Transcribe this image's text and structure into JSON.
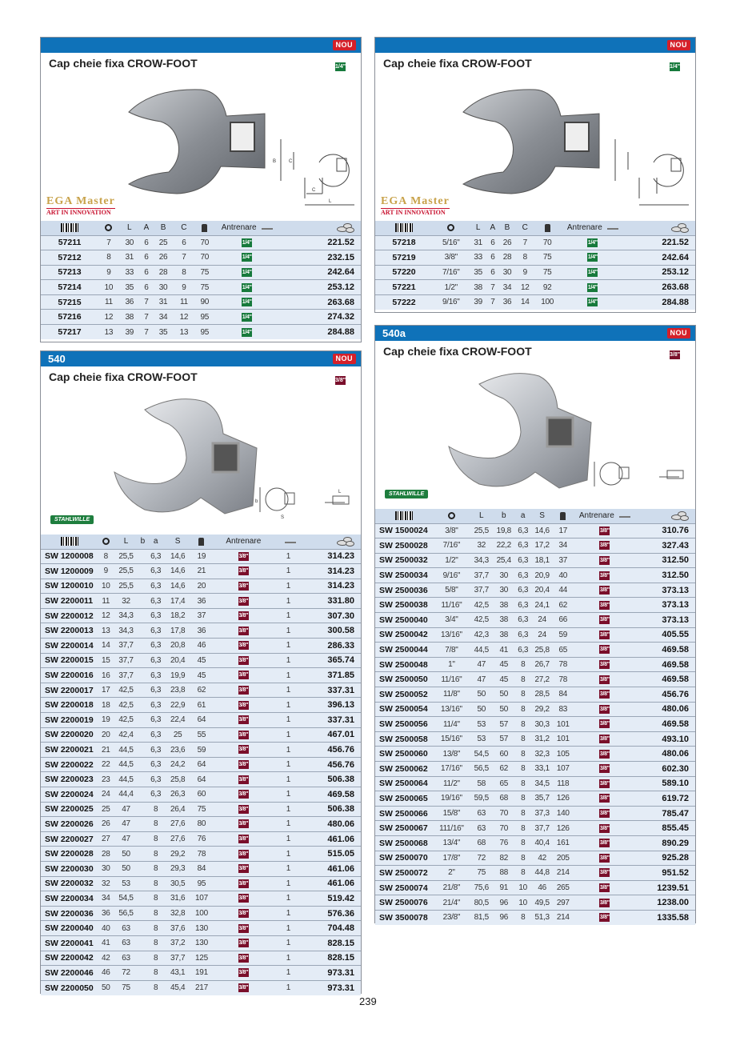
{
  "page_number": "239",
  "badge_new": "NOU",
  "headers": {
    "code_icon": "barcode-icon",
    "size_icon": "ring-icon",
    "weight_icon": "weight-icon",
    "drive": "Antrenare",
    "pack_icon": "ruler-icon",
    "price_icon": "coins-icon"
  },
  "panels": {
    "ega_mm": {
      "title": "Cap cheie fixa CROW-FOOT",
      "drive": "1/4\"",
      "brand": {
        "line1": "EGA Master",
        "line2": "ART IN INNOVATION"
      },
      "columns": [
        "",
        "L",
        "A",
        "B",
        "C",
        "",
        "Antrenare",
        ""
      ],
      "rows": [
        {
          "code": "57211",
          "size": "7",
          "L": "30",
          "A": "6",
          "B": "25",
          "C": "6",
          "g": "70",
          "drive": "1/4\"",
          "price": "221.52"
        },
        {
          "code": "57212",
          "size": "8",
          "L": "31",
          "A": "6",
          "B": "26",
          "C": "7",
          "g": "70",
          "drive": "1/4\"",
          "price": "232.15"
        },
        {
          "code": "57213",
          "size": "9",
          "L": "33",
          "A": "6",
          "B": "28",
          "C": "8",
          "g": "75",
          "drive": "1/4\"",
          "price": "242.64"
        },
        {
          "code": "57214",
          "size": "10",
          "L": "35",
          "A": "6",
          "B": "30",
          "C": "9",
          "g": "75",
          "drive": "1/4\"",
          "price": "253.12"
        },
        {
          "code": "57215",
          "size": "11",
          "L": "36",
          "A": "7",
          "B": "31",
          "C": "11",
          "g": "90",
          "drive": "1/4\"",
          "price": "263.68"
        },
        {
          "code": "57216",
          "size": "12",
          "L": "38",
          "A": "7",
          "B": "34",
          "C": "12",
          "g": "95",
          "drive": "1/4\"",
          "price": "274.32"
        },
        {
          "code": "57217",
          "size": "13",
          "L": "39",
          "A": "7",
          "B": "35",
          "C": "13",
          "g": "95",
          "drive": "1/4\"",
          "price": "284.88"
        }
      ]
    },
    "ega_inch": {
      "title": "Cap cheie fixa CROW-FOOT",
      "drive": "1/4\"",
      "brand": {
        "line1": "EGA Master",
        "line2": "ART IN INNOVATION"
      },
      "rows": [
        {
          "code": "57218",
          "size": "5/16\"",
          "L": "31",
          "A": "6",
          "B": "26",
          "C": "7",
          "g": "70",
          "drive": "1/4\"",
          "price": "221.52"
        },
        {
          "code": "57219",
          "size": "3/8\"",
          "L": "33",
          "A": "6",
          "B": "28",
          "C": "8",
          "g": "75",
          "drive": "1/4\"",
          "price": "242.64"
        },
        {
          "code": "57220",
          "size": "7/16\"",
          "L": "35",
          "A": "6",
          "B": "30",
          "C": "9",
          "g": "75",
          "drive": "1/4\"",
          "price": "253.12"
        },
        {
          "code": "57221",
          "size": "1/2\"",
          "L": "38",
          "A": "7",
          "B": "34",
          "C": "12",
          "g": "92",
          "drive": "1/4\"",
          "price": "263.68"
        },
        {
          "code": "57222",
          "size": "9/16\"",
          "L": "39",
          "A": "7",
          "B": "36",
          "C": "14",
          "g": "100",
          "drive": "1/4\"",
          "price": "284.88"
        }
      ]
    },
    "sw540": {
      "number": "540",
      "title": "Cap cheie fixa CROW-FOOT",
      "drive": "3/8\"",
      "brand": "STAHLWILLE",
      "columns": [
        "",
        "L",
        "b",
        "a",
        "S",
        "",
        "Antrenare",
        ""
      ],
      "rows": [
        {
          "code": "SW 1200008",
          "size": "8",
          "L": "25,5",
          "b": "",
          "a": "6,3",
          "S": "14,6",
          "g": "19",
          "drive": "3/8\"",
          "pack": "1",
          "price": "314.23"
        },
        {
          "code": "SW 1200009",
          "size": "9",
          "L": "25,5",
          "b": "",
          "a": "6,3",
          "S": "14,6",
          "g": "21",
          "drive": "3/8\"",
          "pack": "1",
          "price": "314.23"
        },
        {
          "code": "SW 1200010",
          "size": "10",
          "L": "25,5",
          "b": "",
          "a": "6,3",
          "S": "14,6",
          "g": "20",
          "drive": "3/8\"",
          "pack": "1",
          "price": "314.23"
        },
        {
          "code": "SW 2200011",
          "size": "11",
          "L": "32",
          "b": "",
          "a": "6,3",
          "S": "17,4",
          "g": "36",
          "drive": "3/8\"",
          "pack": "1",
          "price": "331.80"
        },
        {
          "code": "SW 2200012",
          "size": "12",
          "L": "34,3",
          "b": "",
          "a": "6,3",
          "S": "18,2",
          "g": "37",
          "drive": "3/8\"",
          "pack": "1",
          "price": "307.30"
        },
        {
          "code": "SW 2200013",
          "size": "13",
          "L": "34,3",
          "b": "",
          "a": "6,3",
          "S": "17,8",
          "g": "36",
          "drive": "3/8\"",
          "pack": "1",
          "price": "300.58"
        },
        {
          "code": "SW 2200014",
          "size": "14",
          "L": "37,7",
          "b": "",
          "a": "6,3",
          "S": "20,8",
          "g": "46",
          "drive": "3/8\"",
          "pack": "1",
          "price": "286.33"
        },
        {
          "code": "SW 2200015",
          "size": "15",
          "L": "37,7",
          "b": "",
          "a": "6,3",
          "S": "20,4",
          "g": "45",
          "drive": "3/8\"",
          "pack": "1",
          "price": "365.74"
        },
        {
          "code": "SW 2200016",
          "size": "16",
          "L": "37,7",
          "b": "",
          "a": "6,3",
          "S": "19,9",
          "g": "45",
          "drive": "3/8\"",
          "pack": "1",
          "price": "371.85"
        },
        {
          "code": "SW 2200017",
          "size": "17",
          "L": "42,5",
          "b": "",
          "a": "6,3",
          "S": "23,8",
          "g": "62",
          "drive": "3/8\"",
          "pack": "1",
          "price": "337.31"
        },
        {
          "code": "SW 2200018",
          "size": "18",
          "L": "42,5",
          "b": "",
          "a": "6,3",
          "S": "22,9",
          "g": "61",
          "drive": "3/8\"",
          "pack": "1",
          "price": "396.13"
        },
        {
          "code": "SW 2200019",
          "size": "19",
          "L": "42,5",
          "b": "",
          "a": "6,3",
          "S": "22,4",
          "g": "64",
          "drive": "3/8\"",
          "pack": "1",
          "price": "337.31"
        },
        {
          "code": "SW 2200020",
          "size": "20",
          "L": "42,4",
          "b": "",
          "a": "6,3",
          "S": "25",
          "g": "55",
          "drive": "3/8\"",
          "pack": "1",
          "price": "467.01"
        },
        {
          "code": "SW 2200021",
          "size": "21",
          "L": "44,5",
          "b": "",
          "a": "6,3",
          "S": "23,6",
          "g": "59",
          "drive": "3/8\"",
          "pack": "1",
          "price": "456.76"
        },
        {
          "code": "SW 2200022",
          "size": "22",
          "L": "44,5",
          "b": "",
          "a": "6,3",
          "S": "24,2",
          "g": "64",
          "drive": "3/8\"",
          "pack": "1",
          "price": "456.76"
        },
        {
          "code": "SW 2200023",
          "size": "23",
          "L": "44,5",
          "b": "",
          "a": "6,3",
          "S": "25,8",
          "g": "64",
          "drive": "3/8\"",
          "pack": "1",
          "price": "506.38"
        },
        {
          "code": "SW 2200024",
          "size": "24",
          "L": "44,4",
          "b": "",
          "a": "6,3",
          "S": "26,3",
          "g": "60",
          "drive": "3/8\"",
          "pack": "1",
          "price": "469.58"
        },
        {
          "code": "SW 2200025",
          "size": "25",
          "L": "47",
          "b": "",
          "a": "8",
          "S": "26,4",
          "g": "75",
          "drive": "3/8\"",
          "pack": "1",
          "price": "506.38"
        },
        {
          "code": "SW 2200026",
          "size": "26",
          "L": "47",
          "b": "",
          "a": "8",
          "S": "27,6",
          "g": "80",
          "drive": "3/8\"",
          "pack": "1",
          "price": "480.06"
        },
        {
          "code": "SW 2200027",
          "size": "27",
          "L": "47",
          "b": "",
          "a": "8",
          "S": "27,6",
          "g": "76",
          "drive": "3/8\"",
          "pack": "1",
          "price": "461.06"
        },
        {
          "code": "SW 2200028",
          "size": "28",
          "L": "50",
          "b": "",
          "a": "8",
          "S": "29,2",
          "g": "78",
          "drive": "3/8\"",
          "pack": "1",
          "price": "515.05"
        },
        {
          "code": "SW 2200030",
          "size": "30",
          "L": "50",
          "b": "",
          "a": "8",
          "S": "29,3",
          "g": "84",
          "drive": "3/8\"",
          "pack": "1",
          "price": "461.06"
        },
        {
          "code": "SW 2200032",
          "size": "32",
          "L": "53",
          "b": "",
          "a": "8",
          "S": "30,5",
          "g": "95",
          "drive": "3/8\"",
          "pack": "1",
          "price": "461.06"
        },
        {
          "code": "SW 2200034",
          "size": "34",
          "L": "54,5",
          "b": "",
          "a": "8",
          "S": "31,6",
          "g": "107",
          "drive": "3/8\"",
          "pack": "1",
          "price": "519.42"
        },
        {
          "code": "SW 2200036",
          "size": "36",
          "L": "56,5",
          "b": "",
          "a": "8",
          "S": "32,8",
          "g": "100",
          "drive": "3/8\"",
          "pack": "1",
          "price": "576.36"
        },
        {
          "code": "SW 2200040",
          "size": "40",
          "L": "63",
          "b": "",
          "a": "8",
          "S": "37,6",
          "g": "130",
          "drive": "3/8\"",
          "pack": "1",
          "price": "704.48"
        },
        {
          "code": "SW 2200041",
          "size": "41",
          "L": "63",
          "b": "",
          "a": "8",
          "S": "37,2",
          "g": "130",
          "drive": "3/8\"",
          "pack": "1",
          "price": "828.15"
        },
        {
          "code": "SW 2200042",
          "size": "42",
          "L": "63",
          "b": "",
          "a": "8",
          "S": "37,7",
          "g": "125",
          "drive": "3/8\"",
          "pack": "1",
          "price": "828.15"
        },
        {
          "code": "SW 2200046",
          "size": "46",
          "L": "72",
          "b": "",
          "a": "8",
          "S": "43,1",
          "g": "191",
          "drive": "3/8\"",
          "pack": "1",
          "price": "973.31"
        },
        {
          "code": "SW 2200050",
          "size": "50",
          "L": "75",
          "b": "",
          "a": "8",
          "S": "45,4",
          "g": "217",
          "drive": "3/8\"",
          "pack": "1",
          "price": "973.31"
        }
      ]
    },
    "sw540a": {
      "number": "540a",
      "title": "Cap cheie fixa CROW-FOOT",
      "drive": "3/8\"",
      "brand": "STAHLWILLE",
      "rows": [
        {
          "code": "SW 1500024",
          "size": "3/8\"",
          "L": "25,5",
          "b": "19,8",
          "a": "6,3",
          "S": "14,6",
          "g": "17",
          "drive": "3/8\"",
          "price": "310.76"
        },
        {
          "code": "SW 2500028",
          "size": "7/16\"",
          "L": "32",
          "b": "22,2",
          "a": "6,3",
          "S": "17,2",
          "g": "34",
          "drive": "3/8\"",
          "price": "327.43"
        },
        {
          "code": "SW 2500032",
          "size": "1/2\"",
          "L": "34,3",
          "b": "25,4",
          "a": "6,3",
          "S": "18,1",
          "g": "37",
          "drive": "3/8\"",
          "price": "312.50"
        },
        {
          "code": "SW 2500034",
          "size": "9/16\"",
          "L": "37,7",
          "b": "30",
          "a": "6,3",
          "S": "20,9",
          "g": "40",
          "drive": "3/8\"",
          "price": "312.50"
        },
        {
          "code": "SW 2500036",
          "size": "5/8\"",
          "L": "37,7",
          "b": "30",
          "a": "6,3",
          "S": "20,4",
          "g": "44",
          "drive": "3/8\"",
          "price": "373.13"
        },
        {
          "code": "SW 2500038",
          "size": "11/16\"",
          "L": "42,5",
          "b": "38",
          "a": "6,3",
          "S": "24,1",
          "g": "62",
          "drive": "3/8\"",
          "price": "373.13"
        },
        {
          "code": "SW 2500040",
          "size": "3/4\"",
          "L": "42,5",
          "b": "38",
          "a": "6,3",
          "S": "24",
          "g": "66",
          "drive": "3/8\"",
          "price": "373.13"
        },
        {
          "code": "SW 2500042",
          "size": "13/16\"",
          "L": "42,3",
          "b": "38",
          "a": "6,3",
          "S": "24",
          "g": "59",
          "drive": "3/8\"",
          "price": "405.55"
        },
        {
          "code": "SW 2500044",
          "size": "7/8\"",
          "L": "44,5",
          "b": "41",
          "a": "6,3",
          "S": "25,8",
          "g": "65",
          "drive": "3/8\"",
          "price": "469.58"
        },
        {
          "code": "SW 2500048",
          "size": "1\"",
          "L": "47",
          "b": "45",
          "a": "8",
          "S": "26,7",
          "g": "78",
          "drive": "3/8\"",
          "price": "469.58"
        },
        {
          "code": "SW 2500050",
          "size": "11/16\"",
          "L": "47",
          "b": "45",
          "a": "8",
          "S": "27,2",
          "g": "78",
          "drive": "3/8\"",
          "price": "469.58"
        },
        {
          "code": "SW 2500052",
          "size": "11/8\"",
          "L": "50",
          "b": "50",
          "a": "8",
          "S": "28,5",
          "g": "84",
          "drive": "3/8\"",
          "price": "456.76"
        },
        {
          "code": "SW 2500054",
          "size": "13/16\"",
          "L": "50",
          "b": "50",
          "a": "8",
          "S": "29,2",
          "g": "83",
          "drive": "3/8\"",
          "price": "480.06"
        },
        {
          "code": "SW 2500056",
          "size": "11/4\"",
          "L": "53",
          "b": "57",
          "a": "8",
          "S": "30,3",
          "g": "101",
          "drive": "3/8\"",
          "price": "469.58"
        },
        {
          "code": "SW 2500058",
          "size": "15/16\"",
          "L": "53",
          "b": "57",
          "a": "8",
          "S": "31,2",
          "g": "101",
          "drive": "3/8\"",
          "price": "493.10"
        },
        {
          "code": "SW 2500060",
          "size": "13/8\"",
          "L": "54,5",
          "b": "60",
          "a": "8",
          "S": "32,3",
          "g": "105",
          "drive": "3/8\"",
          "price": "480.06"
        },
        {
          "code": "SW 2500062",
          "size": "17/16\"",
          "L": "56,5",
          "b": "62",
          "a": "8",
          "S": "33,1",
          "g": "107",
          "drive": "3/8\"",
          "price": "602.30"
        },
        {
          "code": "SW 2500064",
          "size": "11/2\"",
          "L": "58",
          "b": "65",
          "a": "8",
          "S": "34,5",
          "g": "118",
          "drive": "3/8\"",
          "price": "589.10"
        },
        {
          "code": "SW 2500065",
          "size": "19/16\"",
          "L": "59,5",
          "b": "68",
          "a": "8",
          "S": "35,7",
          "g": "126",
          "drive": "3/8\"",
          "price": "619.72"
        },
        {
          "code": "SW 2500066",
          "size": "15/8\"",
          "L": "63",
          "b": "70",
          "a": "8",
          "S": "37,3",
          "g": "140",
          "drive": "3/8\"",
          "price": "785.47"
        },
        {
          "code": "SW 2500067",
          "size": "111/16\"",
          "L": "63",
          "b": "70",
          "a": "8",
          "S": "37,7",
          "g": "126",
          "drive": "3/8\"",
          "price": "855.45"
        },
        {
          "code": "SW 2500068",
          "size": "13/4\"",
          "L": "68",
          "b": "76",
          "a": "8",
          "S": "40,4",
          "g": "161",
          "drive": "3/8\"",
          "price": "890.29"
        },
        {
          "code": "SW 2500070",
          "size": "17/8\"",
          "L": "72",
          "b": "82",
          "a": "8",
          "S": "42",
          "g": "205",
          "drive": "3/8\"",
          "price": "925.28"
        },
        {
          "code": "SW 2500072",
          "size": "2\"",
          "L": "75",
          "b": "88",
          "a": "8",
          "S": "44,8",
          "g": "214",
          "drive": "3/8\"",
          "price": "951.52"
        },
        {
          "code": "SW 2500074",
          "size": "21/8\"",
          "L": "75,6",
          "b": "91",
          "a": "10",
          "S": "46",
          "g": "265",
          "drive": "3/8\"",
          "price": "1239.51"
        },
        {
          "code": "SW 2500076",
          "size": "21/4\"",
          "L": "80,5",
          "b": "96",
          "a": "10",
          "S": "49,5",
          "g": "297",
          "drive": "3/8\"",
          "price": "1238.00"
        },
        {
          "code": "SW 3500078",
          "size": "23/8\"",
          "L": "81,5",
          "b": "96",
          "a": "8",
          "S": "51,3",
          "g": "214",
          "drive": "3/8\"",
          "price": "1335.58"
        }
      ]
    }
  },
  "colors": {
    "header_blue": "#0f72b9",
    "nou_red": "#d5202a",
    "drive_quarter": "#177a3c",
    "drive_three_eighth": "#7a0f2b",
    "row_bg": "#e4ecf6",
    "head_bg": "#cfdcec"
  }
}
